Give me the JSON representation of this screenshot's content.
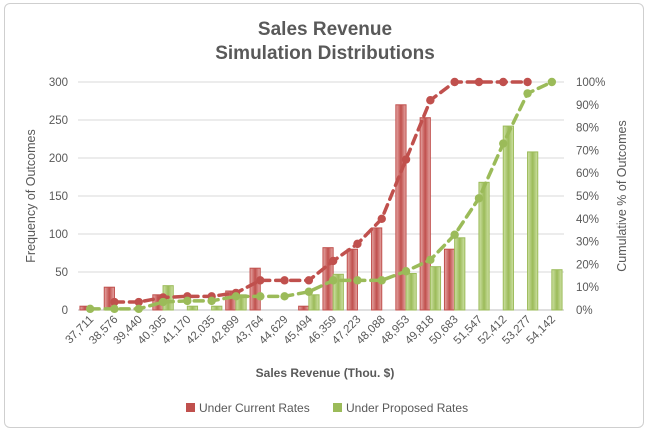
{
  "chart_data": {
    "type": "bar",
    "title_lines": [
      "Sales Revenue",
      "Simulation Distributions"
    ],
    "xlabel": "Sales Revenue (Thou. $)",
    "ylabel": "Frequency of Outcomes",
    "y2label": "Cumulative % of Outcomes",
    "categories": [
      "37,711",
      "38,576",
      "39,440",
      "40,305",
      "41,170",
      "42,035",
      "42,899",
      "43,764",
      "44,629",
      "45,494",
      "46,359",
      "47,223",
      "48,088",
      "48,953",
      "49,818",
      "50,683",
      "51,547",
      "52,412",
      "53,277",
      "54,142"
    ],
    "ylim": [
      0,
      300
    ],
    "yticks": [
      "0",
      "50",
      "100",
      "150",
      "200",
      "250",
      "300"
    ],
    "y2lim": [
      0,
      100
    ],
    "y2ticks": [
      "0%",
      "10%",
      "20%",
      "30%",
      "40%",
      "50%",
      "60%",
      "70%",
      "80%",
      "90%",
      "100%"
    ],
    "grid": true,
    "legend_position": "bottom",
    "series": [
      {
        "name": "Under Current Rates",
        "color": "#c0504d",
        "values": [
          5,
          30,
          0,
          20,
          0,
          0,
          25,
          55,
          0,
          5,
          82,
          80,
          108,
          270,
          253,
          80,
          0,
          0,
          0,
          0
        ],
        "cumulative_pct": [
          null,
          3.5,
          3.5,
          5.5,
          6,
          6,
          7.5,
          13,
          13,
          13,
          21.5,
          29,
          40,
          66,
          92,
          100,
          100,
          100,
          100,
          null
        ]
      },
      {
        "name": "Under Proposed Rates",
        "color": "#9bbb59",
        "values": [
          0,
          0,
          0,
          32,
          5,
          5,
          20,
          0,
          0,
          20,
          47,
          0,
          0,
          48,
          57,
          95,
          168,
          242,
          208,
          53
        ],
        "cumulative_pct": [
          0.5,
          0.5,
          0.5,
          3.5,
          4,
          4,
          6,
          6,
          6,
          8,
          13,
          13,
          13,
          17,
          22,
          33,
          49,
          73,
          95,
          100
        ]
      }
    ]
  }
}
